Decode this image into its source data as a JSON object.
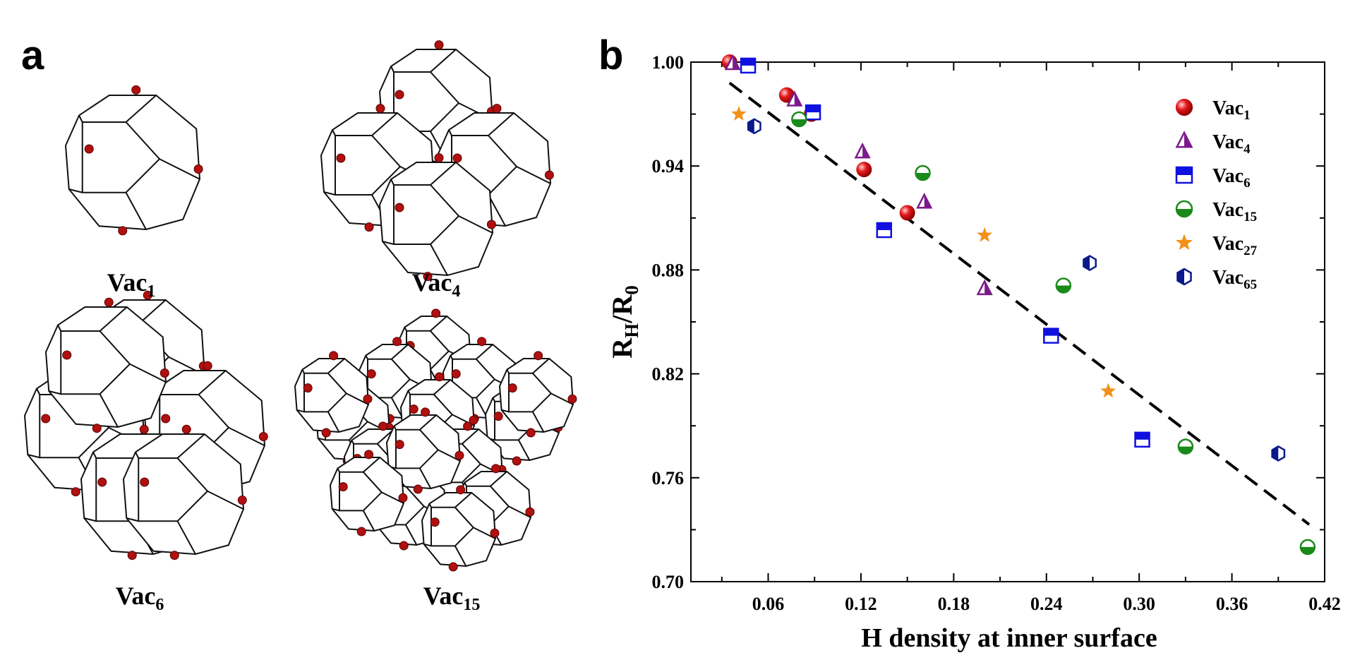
{
  "panel_a": {
    "letter": "a",
    "structures": [
      {
        "label": "Vac",
        "sub": "1"
      },
      {
        "label": "Vac",
        "sub": "4"
      },
      {
        "label": "Vac",
        "sub": "6"
      },
      {
        "label": "Vac",
        "sub": "15"
      }
    ],
    "atom_color": "#b01010"
  },
  "panel_b": {
    "letter": "b"
  },
  "chart_data": {
    "type": "scatter",
    "xlabel": "H density at inner surface",
    "ylabel_main": "R",
    "ylabel_sub1": "H",
    "ylabel_mid": "/R",
    "ylabel_sub2": "0",
    "xlim": [
      0.01,
      0.42
    ],
    "ylim": [
      0.7,
      1.0
    ],
    "x_ticks": [
      "0.06",
      "0.12",
      "0.18",
      "0.24",
      "0.30",
      "0.36",
      "0.42"
    ],
    "y_ticks": [
      "0.70",
      "0.76",
      "0.82",
      "0.88",
      "0.94",
      "1.00"
    ],
    "legend_position": "top-right",
    "grid": false,
    "fit_line": {
      "x": [
        0.035,
        0.41
      ],
      "y": [
        0.988,
        0.733
      ],
      "style": "dashed",
      "color": "#000000"
    },
    "series": [
      {
        "name": "Vac",
        "sub": "1",
        "marker": "sphere",
        "color": "#e41a1c",
        "x": [
          0.035,
          0.072,
          0.088,
          0.122,
          0.15
        ],
        "y": [
          1.0,
          0.981,
          0.97,
          0.938,
          0.913
        ]
      },
      {
        "name": "Vac",
        "sub": "4",
        "marker": "half-triangle",
        "color": "#7b1a8c",
        "x": [
          0.037,
          0.077,
          0.121,
          0.161,
          0.2
        ],
        "y": [
          0.999,
          0.978,
          0.948,
          0.919,
          0.869
        ]
      },
      {
        "name": "Vac",
        "sub": "6",
        "marker": "half-square",
        "color": "#1010e0",
        "x": [
          0.047,
          0.089,
          0.135,
          0.243,
          0.302
        ],
        "y": [
          0.998,
          0.971,
          0.903,
          0.842,
          0.782
        ]
      },
      {
        "name": "Vac",
        "sub": "15",
        "marker": "half-circle",
        "color": "#1a8a1a",
        "x": [
          0.08,
          0.16,
          0.251,
          0.33,
          0.409
        ],
        "y": [
          0.967,
          0.936,
          0.871,
          0.778,
          0.72
        ]
      },
      {
        "name": "Vac",
        "sub": "27",
        "marker": "star",
        "color": "#f39019",
        "x": [
          0.041,
          0.2,
          0.28
        ],
        "y": [
          0.97,
          0.9,
          0.81
        ]
      },
      {
        "name": "Vac",
        "sub": "65",
        "marker": "half-hexagon",
        "color": "#0a1a8a",
        "x": [
          0.051,
          0.268,
          0.39
        ],
        "y": [
          0.963,
          0.884,
          0.774
        ]
      }
    ]
  }
}
